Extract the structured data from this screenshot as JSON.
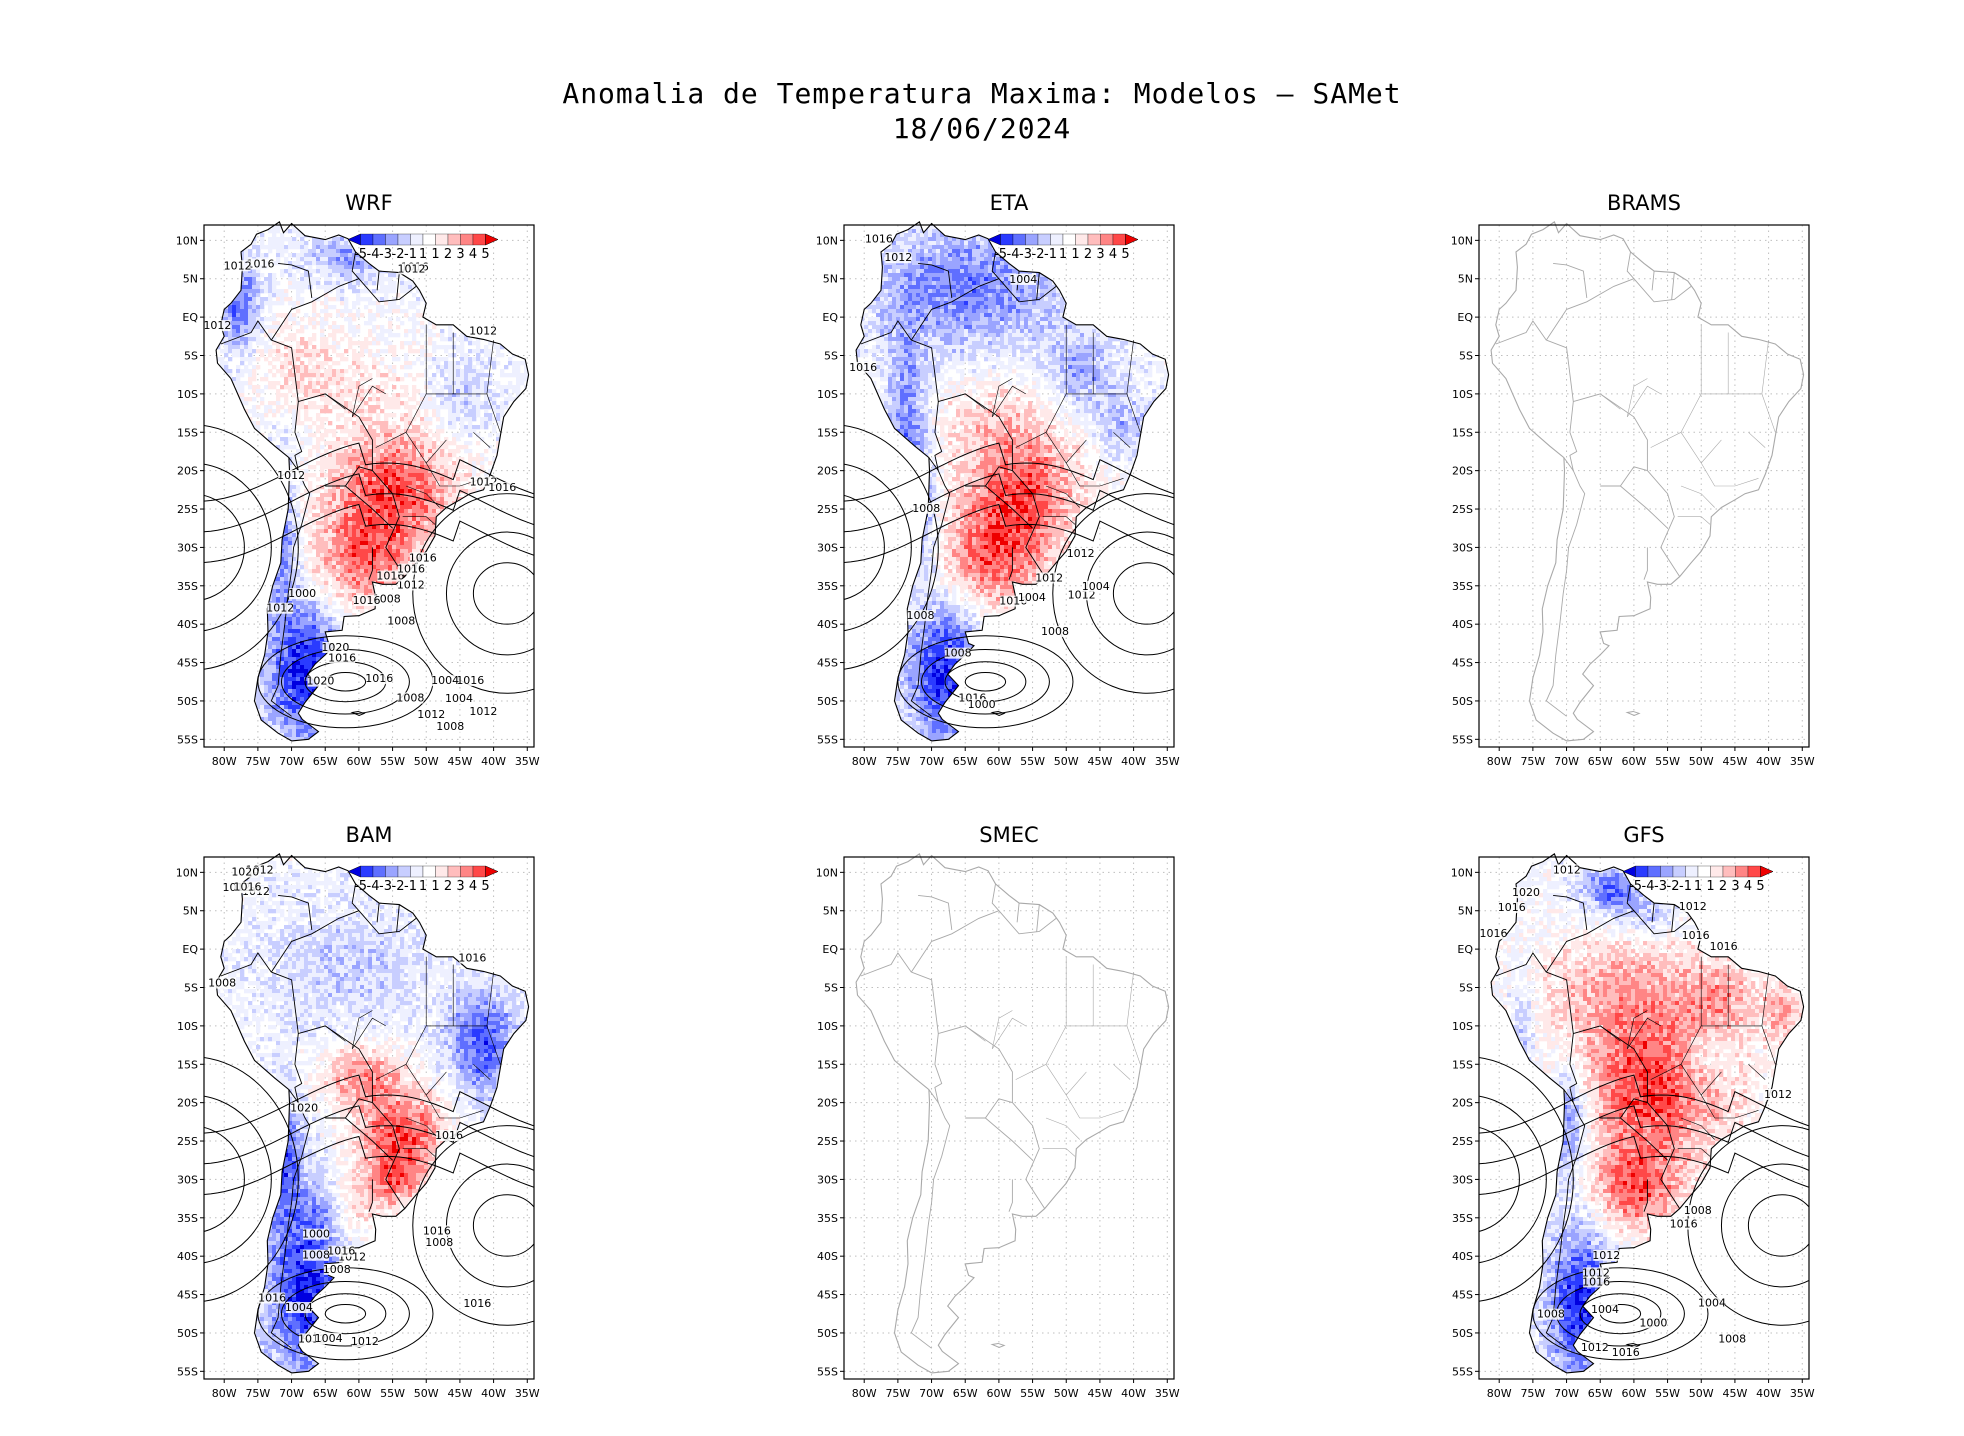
{
  "chart_data": {
    "type": "map-panels",
    "title": "Anomalia de Temperatura Maxima: Modelos — SAMet",
    "subtitle": "18/06/2024",
    "lon_ticks": [
      "80W",
      "75W",
      "70W",
      "65W",
      "60W",
      "55W",
      "50W",
      "45W",
      "40W",
      "35W"
    ],
    "lat_ticks": [
      "10N",
      "5N",
      "EQ",
      "5S",
      "10S",
      "15S",
      "20S",
      "25S",
      "30S",
      "35S",
      "40S",
      "45S",
      "50S",
      "55S"
    ],
    "lon_range": [
      -83,
      -34
    ],
    "lat_range": [
      -56,
      12
    ],
    "legend": {
      "values": [
        "-5",
        "-4",
        "-3",
        "-2",
        "-1",
        "1",
        "1",
        "2",
        "3",
        "4",
        "5"
      ],
      "colors": [
        "#0000e0",
        "#2a3bff",
        "#5f6fff",
        "#9aa4ff",
        "#c8ceff",
        "#eef0ff",
        "#ffffff",
        "#ffe9e9",
        "#ffbdbd",
        "#ff8585",
        "#ff4848",
        "#ee0000"
      ]
    },
    "panels": [
      {
        "name": "WRF",
        "has_data": true,
        "anomaly": "mixed",
        "contour_labels": [
          "1012",
          "1012",
          "1012",
          "1016",
          "1016",
          "1012",
          "1012",
          "1016",
          "1012",
          "1012",
          "1016",
          "1020",
          "1016",
          "1020",
          "1008",
          "1016",
          "1016",
          "1012",
          "1008",
          "1016",
          "1012",
          "1008",
          "1016",
          "1004",
          "1008",
          "1016",
          "1012",
          "1000",
          "1004"
        ]
      },
      {
        "name": "ETA",
        "has_data": true,
        "anomaly": "mixed",
        "contour_labels": [
          "1008",
          "1008",
          "1012",
          "1016",
          "1004",
          "1012",
          "1016",
          "1012",
          "1008",
          "1016",
          "1008",
          "1004",
          "1012",
          "1016",
          "1000",
          "1004"
        ]
      },
      {
        "name": "BRAMS",
        "has_data": false,
        "contour_labels": []
      },
      {
        "name": "BAM",
        "has_data": true,
        "anomaly": "mixed",
        "contour_labels": [
          "1012",
          "1012",
          "1008",
          "1012",
          "1016",
          "1020",
          "1016",
          "1016",
          "1012",
          "1012",
          "1008",
          "1016",
          "1020",
          "1016",
          "1016",
          "1008",
          "1004",
          "1012",
          "1016",
          "1000",
          "1004",
          "1008"
        ]
      },
      {
        "name": "SMEC",
        "has_data": false,
        "contour_labels": []
      },
      {
        "name": "GFS",
        "has_data": true,
        "anomaly": "warm",
        "contour_labels": [
          "1012",
          "1012",
          "1008",
          "1012",
          "1016",
          "1016",
          "1016",
          "1016",
          "1012",
          "1012",
          "1016",
          "1020",
          "1016",
          "1008",
          "1004",
          "1000",
          "1004",
          "1008",
          "1012",
          "1016"
        ]
      }
    ]
  }
}
